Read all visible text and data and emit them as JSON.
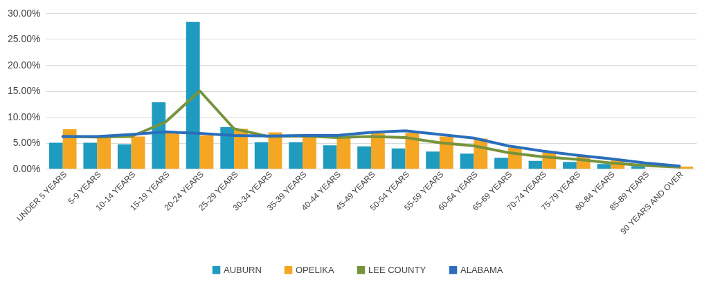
{
  "chart_data": {
    "type": "bar",
    "categories": [
      "UNDER 5 YEARS",
      "5-9 YEARS",
      "10-14 YEARS",
      "15-19 YEARS",
      "20-24 YEARS",
      "25-29 YEARS",
      "30-34 YEARS",
      "35-39 YEARS",
      "40-44 YEARS",
      "45-49 YEARS",
      "50-54 YEARS",
      "55-59 YEARS",
      "60-64 YEARS",
      "65-69 YEARS",
      "70-74 YEARS",
      "75-79 YEARS",
      "80-84 YEARS",
      "85-89 YEARS",
      "90 YEARS AND OVER"
    ],
    "series": [
      {
        "name": "AUBURN",
        "color": "#1f9bbf",
        "values": [
          5.0,
          5.0,
          4.7,
          12.8,
          28.3,
          8.0,
          5.1,
          5.1,
          4.5,
          4.3,
          3.9,
          3.3,
          2.9,
          2.1,
          1.5,
          1.3,
          0.9,
          0.5,
          null
        ]
      },
      {
        "name": "OPELIKA",
        "color": "#f5a623",
        "values": [
          7.6,
          6.0,
          6.2,
          6.9,
          6.4,
          7.7,
          7.0,
          6.2,
          6.1,
          6.8,
          6.9,
          6.2,
          5.8,
          4.1,
          3.1,
          2.5,
          1.6,
          null,
          0.4
        ]
      },
      {
        "name": "LEE COUNTY",
        "type": "line",
        "color": "#77933c",
        "values": [
          6.2,
          6.1,
          6.2,
          9.0,
          15.0,
          7.7,
          6.2,
          6.3,
          6.0,
          6.2,
          6.0,
          5.0,
          4.4,
          3.1,
          2.3,
          1.8,
          1.1,
          0.6,
          0.3
        ]
      },
      {
        "name": "ALABAMA",
        "type": "line",
        "color": "#2a6ebb",
        "values": [
          6.2,
          6.2,
          6.6,
          7.1,
          6.8,
          6.4,
          6.3,
          6.4,
          6.4,
          7.0,
          7.3,
          6.6,
          5.9,
          4.4,
          3.4,
          2.6,
          1.9,
          1.1,
          0.5
        ]
      }
    ],
    "ylim": [
      0,
      30
    ],
    "yticks": [
      {
        "value": 0,
        "label": "0.00%"
      },
      {
        "value": 5,
        "label": "5.00%"
      },
      {
        "value": 10,
        "label": "10.00%"
      },
      {
        "value": 15,
        "label": "15.00%"
      },
      {
        "value": 20,
        "label": "20.00%"
      },
      {
        "value": 25,
        "label": "25.00%"
      },
      {
        "value": 30,
        "label": "30.00%"
      }
    ],
    "grid": "y",
    "legend": "bottom",
    "line_style": "solid",
    "marker": "none"
  }
}
